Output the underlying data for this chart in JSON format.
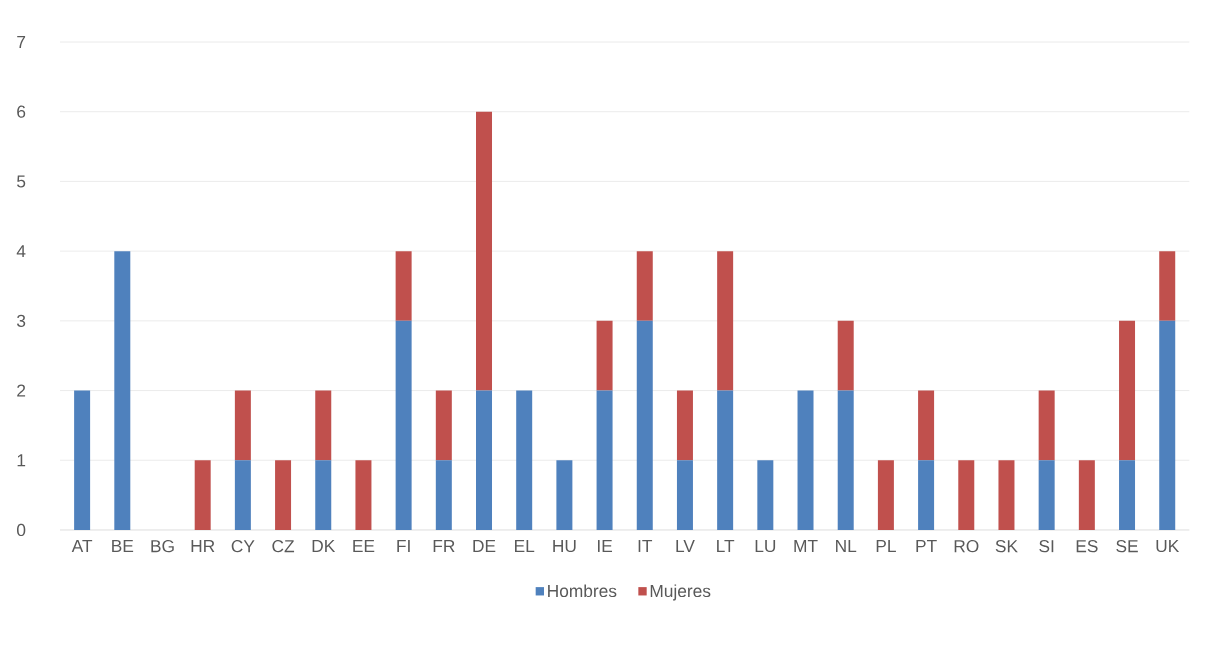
{
  "chart_data": {
    "type": "bar",
    "stacked": true,
    "categories": [
      "AT",
      "BE",
      "BG",
      "HR",
      "CY",
      "CZ",
      "DK",
      "EE",
      "FI",
      "FR",
      "DE",
      "EL",
      "HU",
      "IE",
      "IT",
      "LV",
      "LT",
      "LU",
      "MT",
      "NL",
      "PL",
      "PT",
      "RO",
      "SK",
      "SI",
      "ES",
      "SE",
      "UK"
    ],
    "series": [
      {
        "name": "Hombres",
        "color": "#4f81bd",
        "values": [
          2,
          4,
          0,
          0,
          1,
          0,
          1,
          0,
          3,
          1,
          2,
          2,
          1,
          2,
          3,
          1,
          2,
          1,
          2,
          2,
          0,
          1,
          0,
          0,
          1,
          0,
          1,
          3
        ]
      },
      {
        "name": "Mujeres",
        "color": "#c0504d",
        "values": [
          0,
          0,
          0,
          1,
          1,
          1,
          1,
          1,
          1,
          1,
          4,
          0,
          0,
          1,
          1,
          1,
          2,
          0,
          0,
          1,
          1,
          1,
          1,
          1,
          1,
          1,
          2,
          1
        ]
      }
    ],
    "ylim": [
      0,
      7
    ],
    "yticks": [
      0,
      1,
      2,
      3,
      4,
      5,
      6,
      7
    ],
    "grid": "y",
    "legend": "bottom"
  }
}
